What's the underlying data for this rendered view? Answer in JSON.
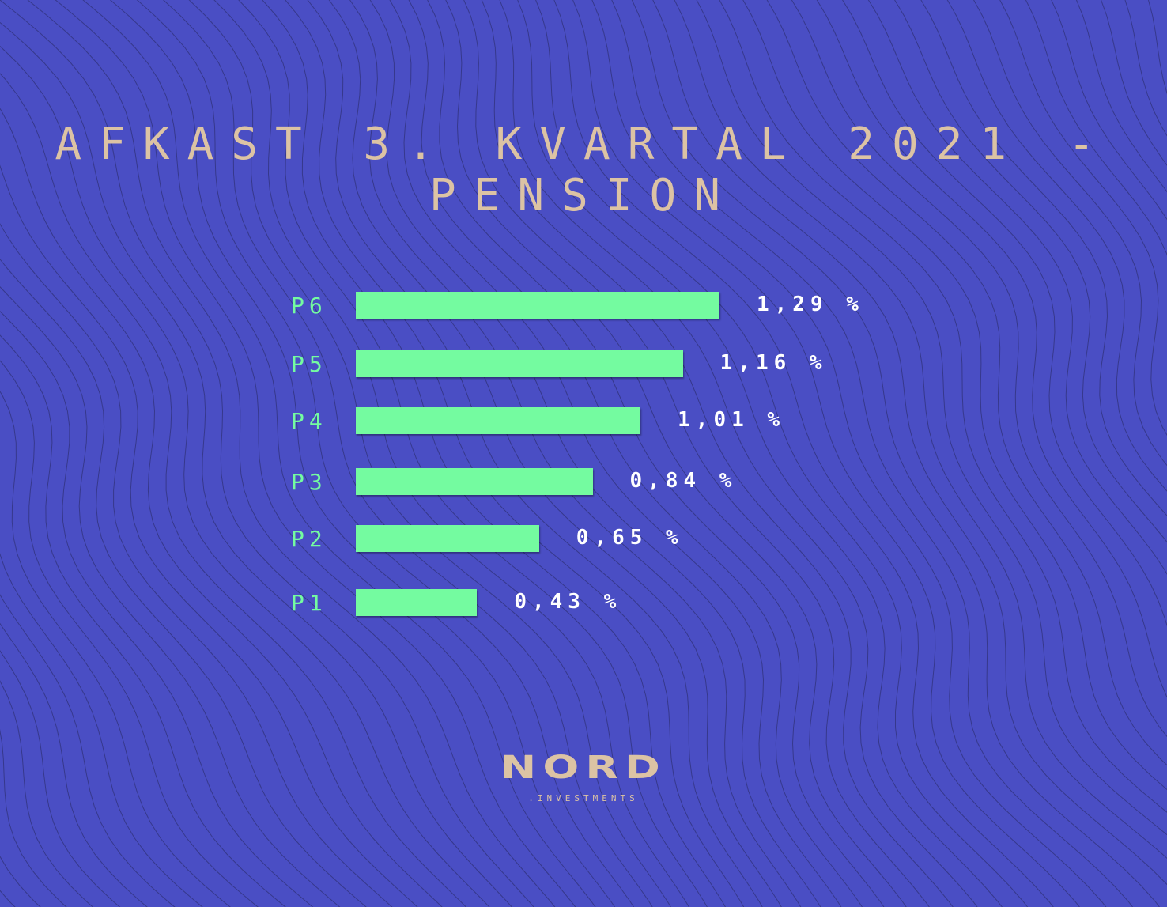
{
  "colors": {
    "background": "#4a4ec4",
    "bar": "#74fba0",
    "title": "#dcc3a4",
    "value_label": "#ffffff"
  },
  "chart_data": {
    "type": "bar",
    "orientation": "horizontal",
    "title": "AFKAST 3. KVARTAL 2021 - PENSION",
    "categories": [
      "P6",
      "P5",
      "P4",
      "P3",
      "P2",
      "P1"
    ],
    "values": [
      1.29,
      1.16,
      1.01,
      0.84,
      0.65,
      0.43
    ],
    "value_labels": [
      "1,29 %",
      "1,16 %",
      "1,01 %",
      "0,84 %",
      "0,65 %",
      "0,43 %"
    ],
    "unit": "%",
    "xlim": [
      0,
      1.29
    ],
    "grid": false,
    "legend": "none"
  },
  "logo": {
    "name": "NORD",
    "sub": ".INVESTMENTS"
  }
}
